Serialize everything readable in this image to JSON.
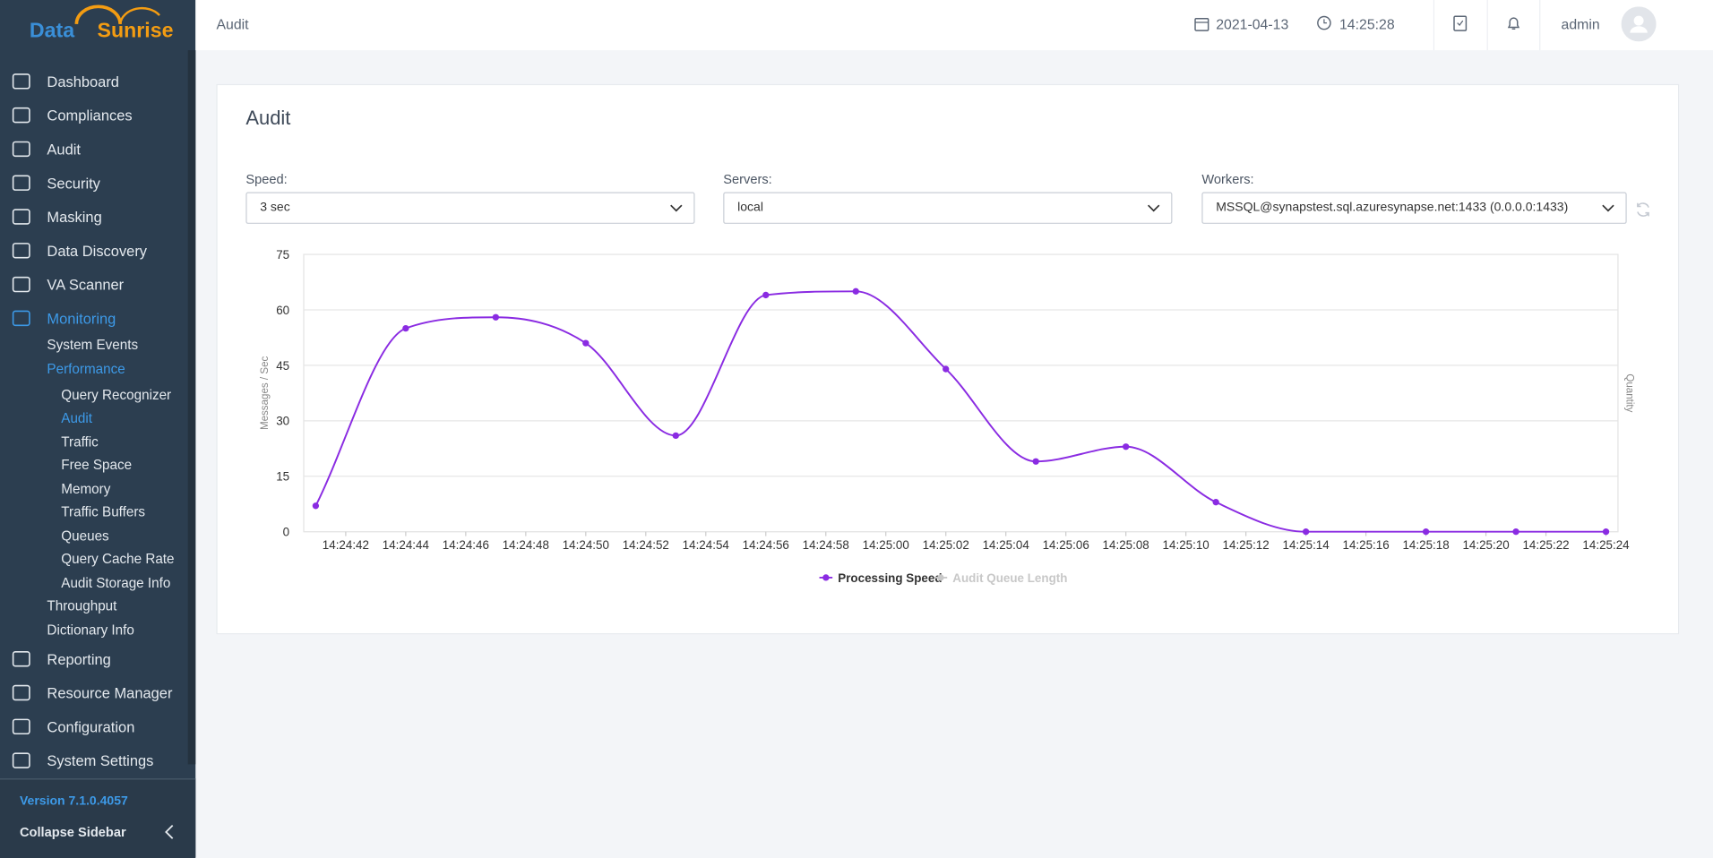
{
  "logo": [
    "Data",
    "Sunrise"
  ],
  "sidebar": {
    "menu": [
      {
        "label": "Dashboard"
      },
      {
        "label": "Compliances"
      },
      {
        "label": "Audit"
      },
      {
        "label": "Security"
      },
      {
        "label": "Masking"
      },
      {
        "label": "Data Discovery"
      },
      {
        "label": "VA Scanner"
      },
      {
        "label": "Monitoring",
        "active": true,
        "children": [
          {
            "label": "System Events"
          },
          {
            "label": "Performance",
            "active": true,
            "children": [
              {
                "label": "Query Recognizer"
              },
              {
                "label": "Audit",
                "active": true
              },
              {
                "label": "Traffic"
              },
              {
                "label": "Free Space"
              },
              {
                "label": "Memory"
              },
              {
                "label": "Traffic Buffers"
              },
              {
                "label": "Queues"
              },
              {
                "label": "Query Cache Rate"
              },
              {
                "label": "Audit Storage Info"
              }
            ]
          },
          {
            "label": "Throughput"
          },
          {
            "label": "Dictionary Info"
          }
        ]
      },
      {
        "label": "Reporting"
      },
      {
        "label": "Resource Manager"
      },
      {
        "label": "Configuration"
      },
      {
        "label": "System Settings"
      }
    ],
    "version": "Version 7.1.0.4057",
    "collapse": "Collapse Sidebar"
  },
  "header": {
    "breadcrumb": "Audit",
    "date": "2021-04-13",
    "time": "14:25:28",
    "user": "admin"
  },
  "card": {
    "title": "Audit",
    "filters": [
      {
        "label": "Speed:",
        "value": "3 sec"
      },
      {
        "label": "Servers:",
        "value": "local"
      },
      {
        "label": "Workers:",
        "value": "MSSQL@synapstest.sql.azuresynapse.net:1433 (0.0.0.0:1433)"
      }
    ]
  },
  "chart_data": {
    "type": "line",
    "x": [
      "14:24:41",
      "14:24:44",
      "14:24:47",
      "14:24:50",
      "14:24:53",
      "14:24:56",
      "14:24:59",
      "14:25:02",
      "14:25:05",
      "14:25:08",
      "14:25:11",
      "14:25:14",
      "14:25:18",
      "14:25:21",
      "14:25:24"
    ],
    "series": [
      {
        "name": "Processing Speed",
        "color": "#8a2be2",
        "values": [
          7,
          55,
          58,
          51,
          26,
          64,
          65,
          44,
          19,
          23,
          8,
          0,
          0,
          0,
          0
        ]
      },
      {
        "name": "Audit Queue Length",
        "color": "#c8c8c8",
        "axis": "y2",
        "hidden": true,
        "values": [
          null,
          null,
          null,
          null,
          null,
          null,
          null,
          null,
          null,
          null,
          null,
          null,
          null,
          null,
          null
        ]
      }
    ],
    "y_label": "Messages / Sec",
    "y2_label": "Quantity",
    "xlim": [
      "14:24:40.6",
      "14:25:24.4"
    ],
    "xticks": [
      "14:24:42",
      "14:24:44",
      "14:24:46",
      "14:24:48",
      "14:24:50",
      "14:24:52",
      "14:24:54",
      "14:24:56",
      "14:24:58",
      "14:25:00",
      "14:25:02",
      "14:25:04",
      "14:25:06",
      "14:25:08",
      "14:25:10",
      "14:25:12",
      "14:25:14",
      "14:25:16",
      "14:25:18",
      "14:25:20",
      "14:25:22",
      "14:25:24"
    ],
    "ylim": [
      0,
      75
    ],
    "yticks": [
      0,
      15,
      30,
      45,
      60,
      75
    ],
    "grid": true,
    "legend": "bottom"
  }
}
